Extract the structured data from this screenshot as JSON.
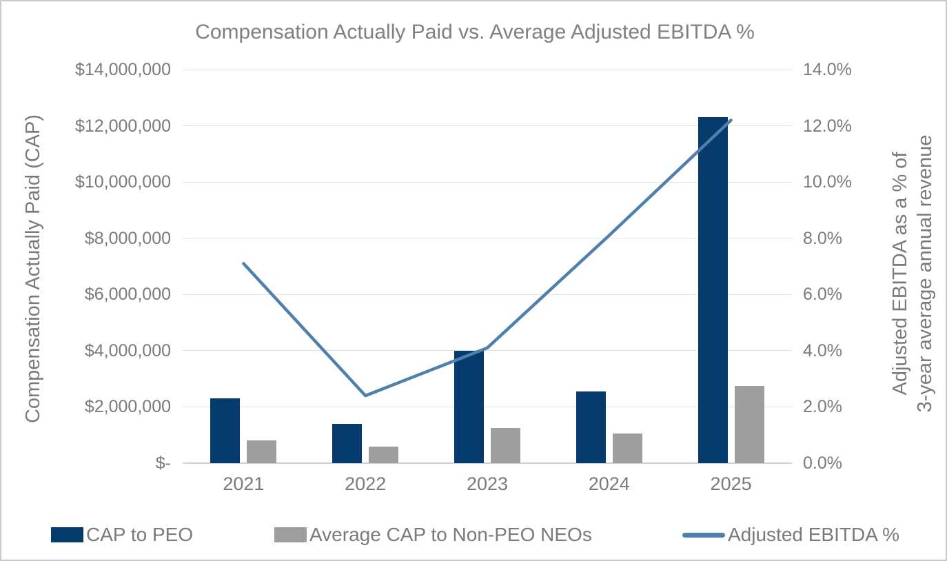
{
  "chart_data": {
    "type": "bar+line combo",
    "title": "Compensation Actually Paid vs. Average Adjusted EBITDA %",
    "categories": [
      "2021",
      "2022",
      "2023",
      "2024",
      "2025"
    ],
    "series": [
      {
        "name": "CAP to PEO",
        "type": "bar",
        "axis": "left",
        "color": "#063c6d",
        "values": [
          2300000,
          1400000,
          4000000,
          2550000,
          12300000
        ]
      },
      {
        "name": "Average CAP to Non-PEO NEOs",
        "type": "bar",
        "axis": "left",
        "color": "#9e9e9e",
        "values": [
          800000,
          600000,
          1250000,
          1050000,
          2750000
        ]
      },
      {
        "name": "Adjusted EBITDA %",
        "type": "line",
        "axis": "right",
        "color": "#4e80ab",
        "values": [
          7.1,
          2.4,
          4.1,
          8.1,
          12.2
        ]
      }
    ],
    "left_axis": {
      "title": "Compensation Actually Paid (CAP)",
      "min": 0,
      "max": 14000000,
      "tick_labels": [
        "$-",
        "$2,000,000",
        "$4,000,000",
        "$6,000,000",
        "$8,000,000",
        "$10,000,000",
        "$12,000,000",
        "$14,000,000"
      ]
    },
    "right_axis": {
      "title_lines": [
        "Adjusted EBITDA as a % of",
        "3-year average annual revenue"
      ],
      "min": 0,
      "max": 14,
      "tick_labels": [
        "0.0%",
        "2.0%",
        "4.0%",
        "6.0%",
        "8.0%",
        "10.0%",
        "12.0%",
        "14.0%"
      ]
    },
    "legend": [
      "CAP to PEO",
      "Average CAP to Non-PEO NEOs",
      "Adjusted EBITDA %"
    ],
    "legend_position": "bottom",
    "grid": true,
    "colors": {
      "title_text": "#808080",
      "axis_text": "#7a7a7a",
      "gridline": "#e2e2e2",
      "axis_line": "#d2d2d2",
      "frame_border": "#c9c9c9"
    }
  }
}
